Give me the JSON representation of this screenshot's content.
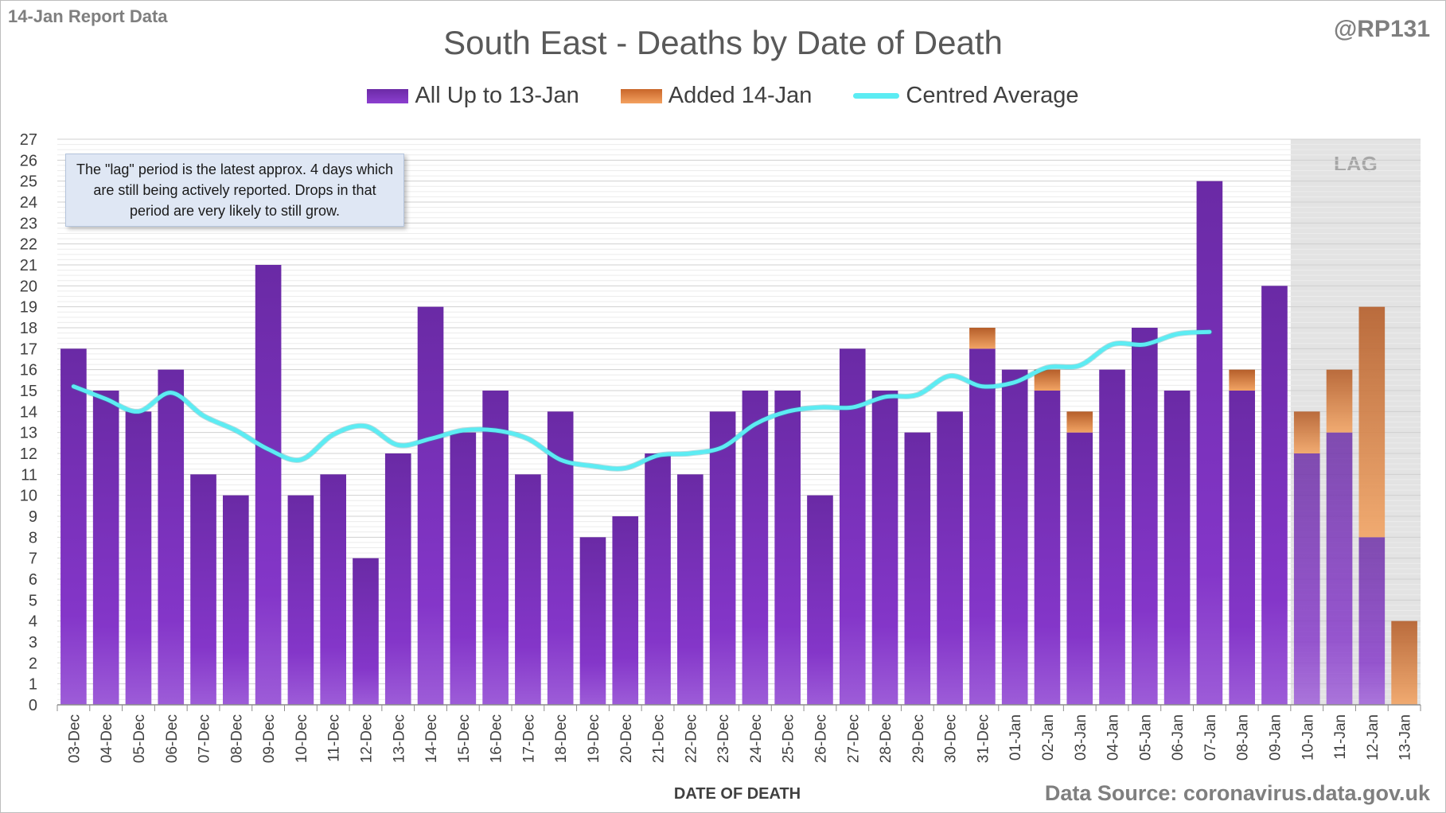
{
  "report_label": "14-Jan Report Data",
  "handle": "@RP131",
  "source_label": "Data Source: coronavirus.data.gov.uk",
  "note_text": "The \"lag\" period is the latest approx. 4 days which are still being actively reported.  Drops in that period are very likely to still grow.",
  "lag_label": "LAG",
  "colors": {
    "all_up_to": "#7a34bd",
    "added": "#e0803e",
    "average": "#5cecf3",
    "lag_shade": "#e3e3e3"
  },
  "chart_data": {
    "type": "bar",
    "title": "South East - Deaths by Date of Death",
    "xlabel": "DATE OF DEATH",
    "ylabel": "",
    "ylim": [
      0,
      27
    ],
    "y_ticks": [
      "0",
      "1",
      "2",
      "3",
      "4",
      "5",
      "6",
      "7",
      "8",
      "9",
      "10",
      "11",
      "12",
      "13",
      "14",
      "15",
      "16",
      "17",
      "18",
      "19",
      "20",
      "21",
      "22",
      "23",
      "24",
      "25",
      "26",
      "27"
    ],
    "stacked": true,
    "grid": true,
    "legend_position": "top-center",
    "categories": [
      "03-Dec",
      "04-Dec",
      "05-Dec",
      "06-Dec",
      "07-Dec",
      "08-Dec",
      "09-Dec",
      "10-Dec",
      "11-Dec",
      "12-Dec",
      "13-Dec",
      "14-Dec",
      "15-Dec",
      "16-Dec",
      "17-Dec",
      "18-Dec",
      "19-Dec",
      "20-Dec",
      "21-Dec",
      "22-Dec",
      "23-Dec",
      "24-Dec",
      "25-Dec",
      "26-Dec",
      "27-Dec",
      "28-Dec",
      "29-Dec",
      "30-Dec",
      "31-Dec",
      "01-Jan",
      "02-Jan",
      "03-Jan",
      "04-Jan",
      "05-Jan",
      "06-Jan",
      "07-Jan",
      "08-Jan",
      "09-Jan",
      "10-Jan",
      "11-Jan",
      "12-Jan",
      "13-Jan"
    ],
    "series": [
      {
        "name": "All Up to 13-Jan",
        "values": [
          17,
          15,
          14,
          16,
          11,
          10,
          21,
          10,
          11,
          7,
          12,
          19,
          13,
          15,
          11,
          14,
          8,
          9,
          12,
          11,
          14,
          15,
          15,
          10,
          17,
          15,
          13,
          14,
          17,
          16,
          15,
          13,
          16,
          18,
          15,
          25,
          15,
          20,
          12,
          13,
          8,
          0
        ]
      },
      {
        "name": "Added 14-Jan",
        "values": [
          0,
          0,
          0,
          0,
          0,
          0,
          0,
          0,
          0,
          0,
          0,
          0,
          0,
          0,
          0,
          0,
          0,
          0,
          0,
          0,
          0,
          0,
          0,
          0,
          0,
          0,
          0,
          0,
          1,
          0,
          1,
          1,
          0,
          0,
          0,
          0,
          1,
          0,
          2,
          3,
          11,
          4
        ]
      },
      {
        "name": "Centred Average",
        "type": "line",
        "values": [
          15.2,
          14.6,
          14.0,
          14.9,
          13.8,
          13.1,
          12.2,
          11.7,
          12.9,
          13.3,
          12.4,
          12.7,
          13.1,
          13.1,
          12.7,
          11.7,
          11.4,
          11.3,
          11.9,
          12.0,
          12.3,
          13.4,
          14.0,
          14.2,
          14.2,
          14.7,
          14.8,
          15.7,
          15.2,
          15.4,
          16.1,
          16.2,
          17.2,
          17.2,
          17.7,
          17.8,
          null,
          null,
          null,
          null,
          null,
          null
        ]
      }
    ],
    "lag_categories": [
      "10-Jan",
      "11-Jan",
      "12-Jan",
      "13-Jan"
    ]
  }
}
